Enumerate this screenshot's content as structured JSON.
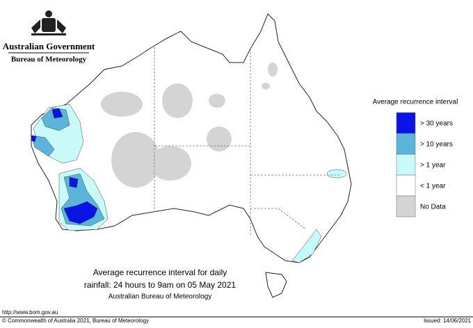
{
  "header": {
    "government": "Australian Government",
    "agency": "Bureau of Meteorology"
  },
  "title": {
    "line1": "Average recurrence interval for daily",
    "line2": "rainfall: 24 hours to 9am on 05 May 2021",
    "source": "Australian Bureau of Meteorology"
  },
  "legend": {
    "title": "Average recurrence interval",
    "items": [
      {
        "label": "> 30 years",
        "color": "#0a14e6"
      },
      {
        "label": "> 10 years",
        "color": "#5ab4dc"
      },
      {
        "label": "> 1 year",
        "color": "#c8fafa"
      },
      {
        "label": "< 1 year",
        "color": "#ffffff"
      },
      {
        "label": "No Data",
        "color": "#d4d4d4"
      }
    ]
  },
  "footer": {
    "url": "http://www.bom.gov.au",
    "copyright": "© Commonwealth of Australia 2021, Bureau of Meteorology",
    "issued": "Issued: 14/06/2021"
  }
}
